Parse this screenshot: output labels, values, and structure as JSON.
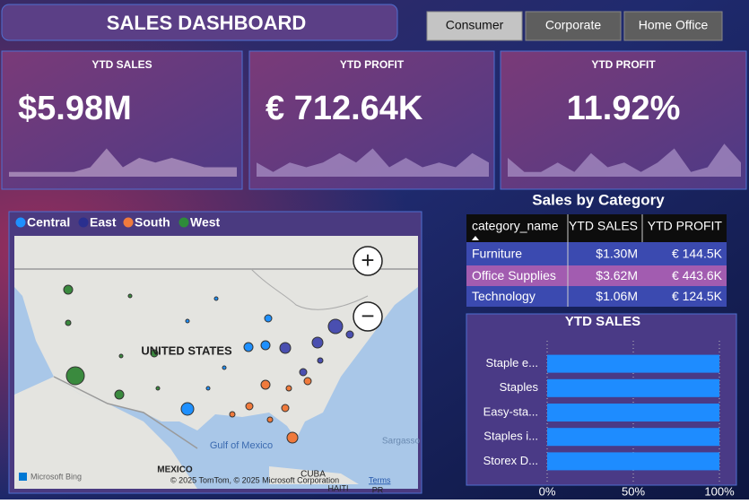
{
  "header": {
    "title": "SALES DASHBOARD"
  },
  "segments": [
    "Consumer",
    "Corporate",
    "Home Office"
  ],
  "kpis": [
    {
      "label": "YTD SALES",
      "value": "$5.98M",
      "sparkline": [
        1,
        1,
        1,
        1,
        1,
        2,
        6,
        2,
        4,
        3,
        4,
        3,
        2,
        2,
        2
      ],
      "color": "#b59bc4"
    },
    {
      "label": "YTD PROFIT",
      "value": "€ 712.64K",
      "sparkline": [
        3,
        1,
        3,
        2,
        3,
        5,
        3,
        6,
        2,
        4,
        2,
        3,
        2,
        5,
        3
      ],
      "color": "#a78fc4"
    },
    {
      "label": "YTD PROFIT",
      "value": "11.92%",
      "sparkline": [
        4,
        1,
        1,
        3,
        1,
        5,
        2,
        3,
        1,
        3,
        6,
        1,
        2,
        7,
        3
      ],
      "color": "#a78fc4"
    }
  ],
  "spark_ylim": [
    0,
    8
  ],
  "map": {
    "legend": [
      {
        "name": "Central",
        "color": "#1e90ff"
      },
      {
        "name": "East",
        "color": "#2a2f8f"
      },
      {
        "name": "South",
        "color": "#f07a3c"
      },
      {
        "name": "West",
        "color": "#2e8b3a"
      }
    ],
    "labels": {
      "country": "UNITED STATES",
      "gulf": "Gulf of Mexico",
      "mexico": "MEXICO",
      "cuba": "CUBA",
      "haiti": "HAITI",
      "sargasso": "Sargasso",
      "pr": "PR"
    },
    "attribution": "© 2025 TomTom, © 2025 Microsoft Corporation",
    "terms": "Terms",
    "provider": "Microsoft Bing",
    "zoom_in": "+",
    "zoom_out": "−"
  },
  "table": {
    "title": "Sales by Category",
    "columns": [
      "category_name",
      "YTD SALES",
      "YTD PROFIT"
    ],
    "rows": [
      [
        "Furniture",
        "$1.30M",
        "€ 144.5K"
      ],
      [
        "Office Supplies",
        "$3.62M",
        "€ 443.6K"
      ],
      [
        "Technology",
        "$1.06M",
        "€ 124.5K"
      ]
    ]
  },
  "chart_data": {
    "type": "bar",
    "title": "YTD SALES",
    "categories": [
      "Staple e...",
      "Staples",
      "Easy-sta...",
      "Staples i...",
      "Storex D..."
    ],
    "values": [
      100,
      100,
      100,
      100,
      100
    ],
    "color": "#1e8cff",
    "xlim": [
      0,
      100
    ],
    "xticks": [
      {
        "value": 0,
        "label": "0%"
      },
      {
        "value": 50,
        "label": "50%"
      },
      {
        "value": 100,
        "label": "100%"
      }
    ],
    "grid": true
  }
}
